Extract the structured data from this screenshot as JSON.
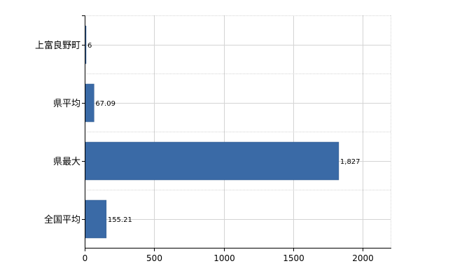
{
  "chart_data": {
    "type": "bar",
    "orientation": "horizontal",
    "categories": [
      "上富良野町",
      "県平均",
      "県最大",
      "全国平均"
    ],
    "values": [
      6,
      67.09,
      1827,
      155.21
    ],
    "value_labels": [
      "6",
      "67.09",
      "1,827",
      "155.21"
    ],
    "x_ticks": [
      0,
      500,
      1000,
      1500,
      2000
    ],
    "x_tick_labels": [
      "0",
      "500",
      "1000",
      "1500",
      "2000"
    ],
    "xlim": [
      0,
      2200
    ],
    "grid": true,
    "legend": "none",
    "bar_color": "#3a6aa6",
    "bar_edge_color": "#2c5688",
    "grid_color": "#d4d4d4",
    "axis_color": "#000000"
  }
}
